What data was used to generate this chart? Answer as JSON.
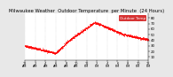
{
  "title_text": "Milwaukee Weather  Outdoor Temperature  per Minute  (24 Hours)",
  "bg_color": "#e8e8e8",
  "plot_bg_color": "#ffffff",
  "line_color": "#ff0000",
  "legend_label": "Outdoor Temp",
  "legend_bg": "#cc0000",
  "yticks": [
    10,
    20,
    30,
    40,
    50,
    60,
    70,
    80
  ],
  "ylim": [
    5,
    88
  ],
  "xlim": [
    0,
    1440
  ],
  "grid_color": "#bbbbbb",
  "title_fontsize": 3.8,
  "tick_fontsize": 2.8,
  "legend_fontsize": 3.0,
  "temp_start": 30,
  "temp_dip_start": 28,
  "temp_dip_end": 17,
  "temp_peak": 72,
  "temp_end": 50
}
